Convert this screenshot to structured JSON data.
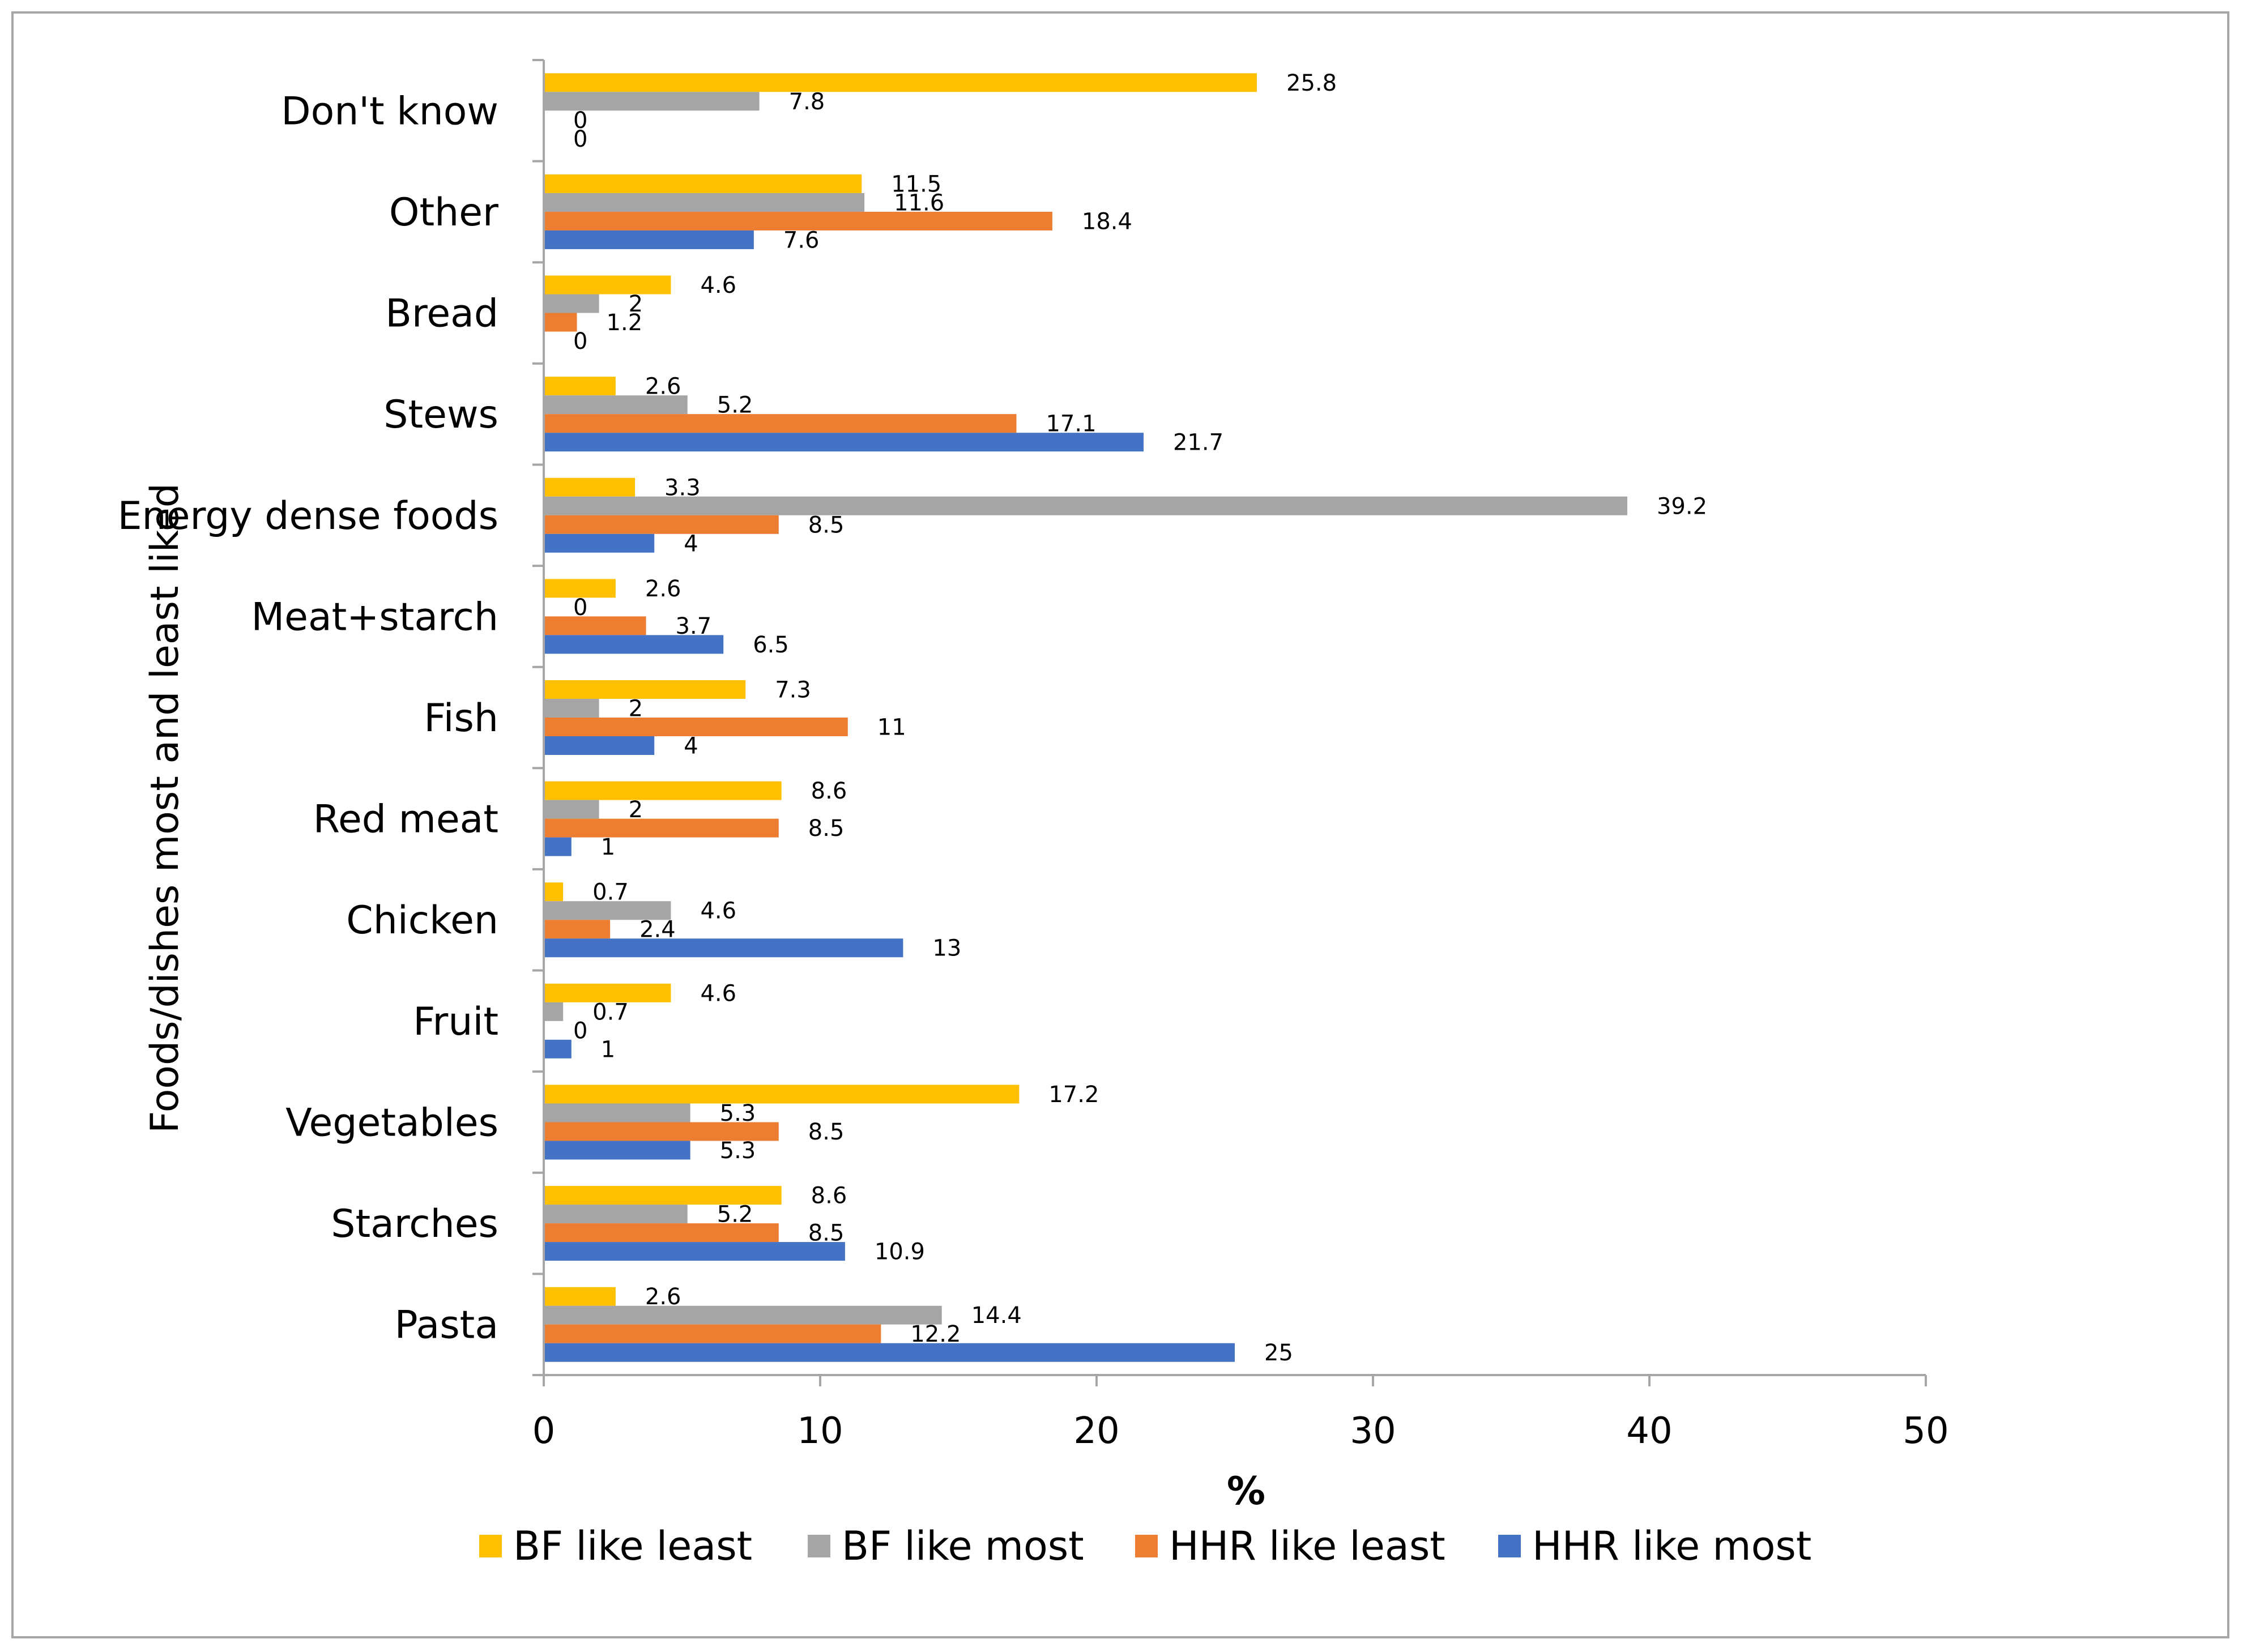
{
  "chart_data": {
    "type": "bar",
    "orientation": "horizontal",
    "title": "",
    "xlabel": "%",
    "ylabel": "Foods/dishes  most and least liked",
    "xlim": [
      0,
      50
    ],
    "xticks": [
      0,
      10,
      20,
      30,
      40,
      50
    ],
    "grid": false,
    "legend_position": "bottom",
    "categories": [
      "Don't know",
      "Other",
      "Bread",
      "Stews",
      "Energy dense foods",
      "Meat+starch",
      "Fish",
      "Red meat",
      "Chicken",
      "Fruit",
      "Vegetables",
      "Starches",
      "Pasta"
    ],
    "series": [
      {
        "name": "BF like least",
        "color": "#ffc000",
        "values": [
          25.8,
          11.5,
          4.6,
          2.6,
          3.3,
          2.6,
          7.3,
          8.6,
          0.7,
          4.6,
          17.2,
          8.6,
          2.6
        ]
      },
      {
        "name": "BF like most",
        "color": "#a5a5a5",
        "values": [
          7.8,
          11.6,
          2,
          5.2,
          39.2,
          0,
          2,
          2,
          4.6,
          0.7,
          5.3,
          5.2,
          14.4
        ]
      },
      {
        "name": "HHR like least",
        "color": "#ed7d31",
        "values": [
          0,
          18.4,
          1.2,
          17.1,
          8.5,
          3.7,
          11,
          8.5,
          2.4,
          0,
          8.5,
          8.5,
          12.2
        ]
      },
      {
        "name": "HHR like most",
        "color": "#4472c4",
        "values": [
          0,
          7.6,
          0,
          21.7,
          4,
          6.5,
          4,
          1,
          13,
          1,
          5.3,
          10.9,
          25
        ]
      }
    ]
  }
}
